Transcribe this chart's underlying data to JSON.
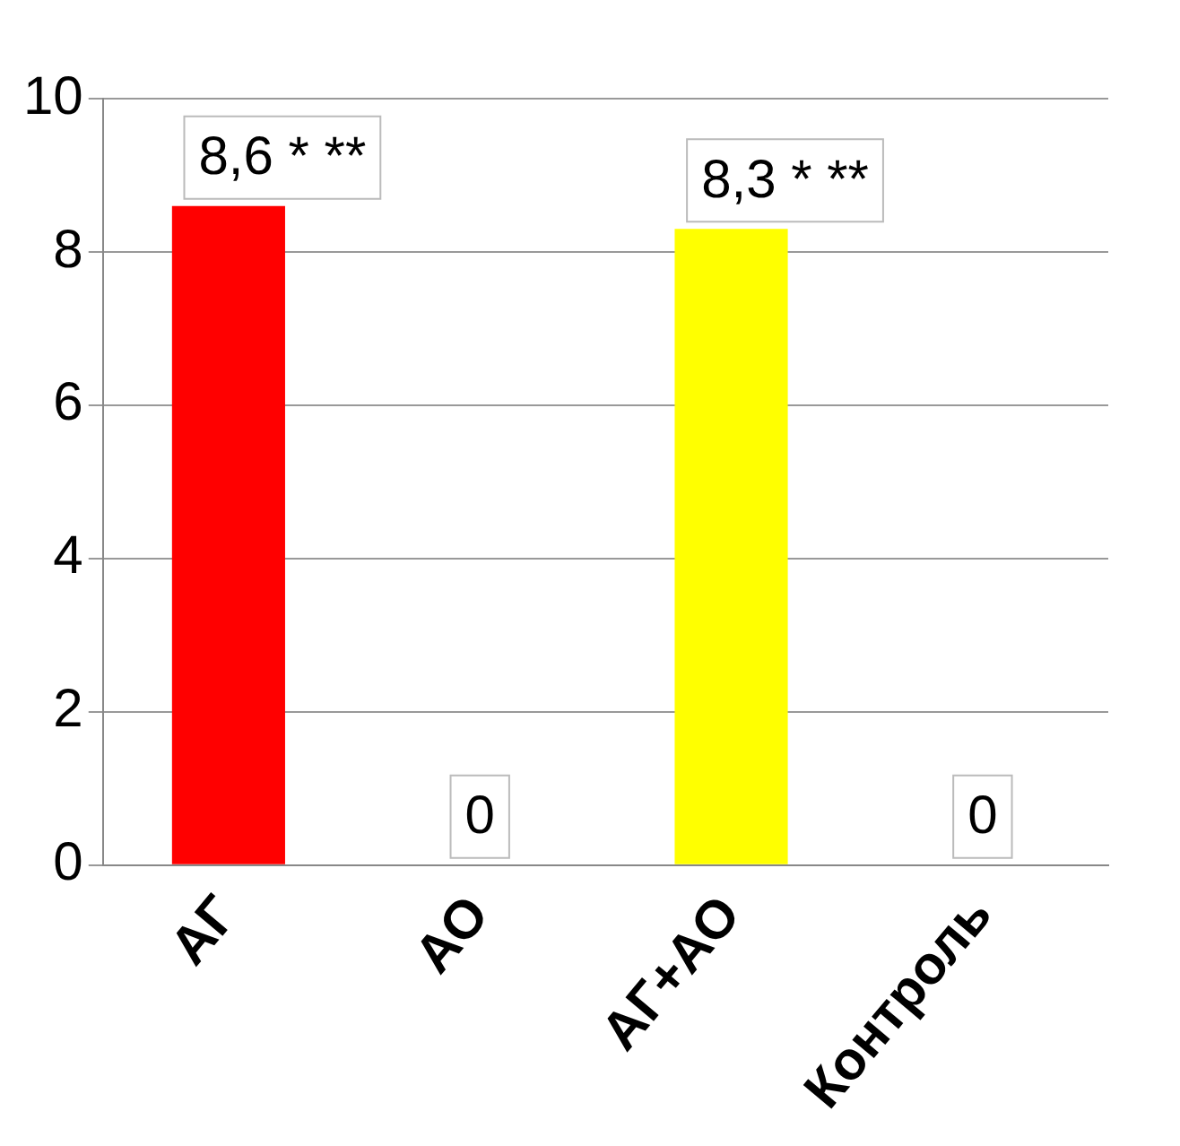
{
  "chart_data": {
    "type": "bar",
    "categories": [
      "АГ",
      "АО",
      "АГ+АО",
      "Контроль"
    ],
    "values": [
      8.6,
      0,
      8.3,
      0
    ],
    "colors": [
      "#ff0000",
      "#1f5fa8",
      "#ffff00",
      "#1a9a4a"
    ],
    "value_labels": [
      "8,6 * **",
      "0",
      "8,3 * **",
      "0"
    ],
    "ylim": [
      0,
      10
    ],
    "yticks": [
      0,
      2,
      4,
      6,
      8,
      10
    ],
    "grid": "y",
    "legend": false
  }
}
